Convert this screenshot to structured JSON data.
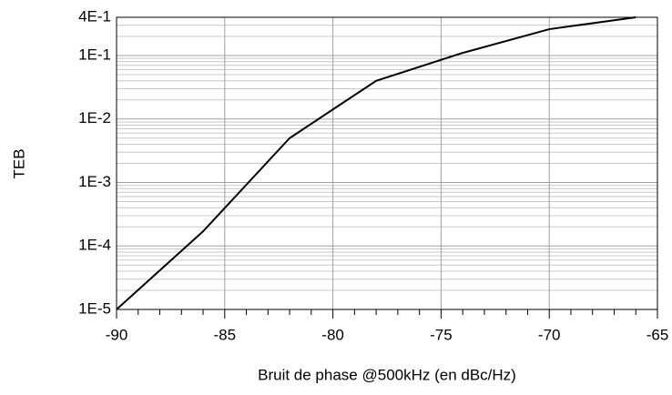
{
  "chart_data": {
    "type": "line",
    "xlabel": "Bruit de phase @500kHz (en dBc/Hz)",
    "ylabel": "TEB",
    "x": [
      -90,
      -86,
      -82,
      -78,
      -74,
      -70,
      -66
    ],
    "series": [
      {
        "color": "#000000",
        "values": [
          1e-05,
          0.00017,
          0.005,
          0.04,
          0.11,
          0.26,
          0.4
        ]
      }
    ],
    "xlim": [
      -90,
      -65
    ],
    "xticks": [
      -90,
      -85,
      -80,
      -75,
      -70,
      -65
    ],
    "xminorticks": [
      -89,
      -88,
      -87,
      -86,
      -84,
      -83,
      -82,
      -81,
      -79,
      -78,
      -77,
      -76,
      -74,
      -73,
      -72,
      -71,
      -69,
      -68,
      -67,
      -66
    ],
    "ylim": [
      1e-05,
      0.4
    ],
    "yscale": "log",
    "yticks": [
      {
        "value": 1e-05,
        "label": "1E-5"
      },
      {
        "value": 0.0001,
        "label": "1E-4"
      },
      {
        "value": 0.001,
        "label": "1E-3"
      },
      {
        "value": 0.01,
        "label": "1E-2"
      },
      {
        "value": 0.1,
        "label": "1E-1"
      },
      {
        "value": 0.4,
        "label": "4E-1"
      }
    ],
    "yminorticks": [
      2e-05,
      3e-05,
      4e-05,
      5e-05,
      6e-05,
      7e-05,
      8e-05,
      9e-05,
      0.0002,
      0.0003,
      0.0004,
      0.0005,
      0.0006,
      0.0007,
      0.0008,
      0.0009,
      0.002,
      0.003,
      0.004,
      0.005,
      0.006,
      0.007,
      0.008,
      0.009,
      0.02,
      0.03,
      0.04,
      0.05,
      0.06,
      0.07,
      0.08,
      0.09,
      0.2,
      0.3
    ],
    "grid": true
  }
}
